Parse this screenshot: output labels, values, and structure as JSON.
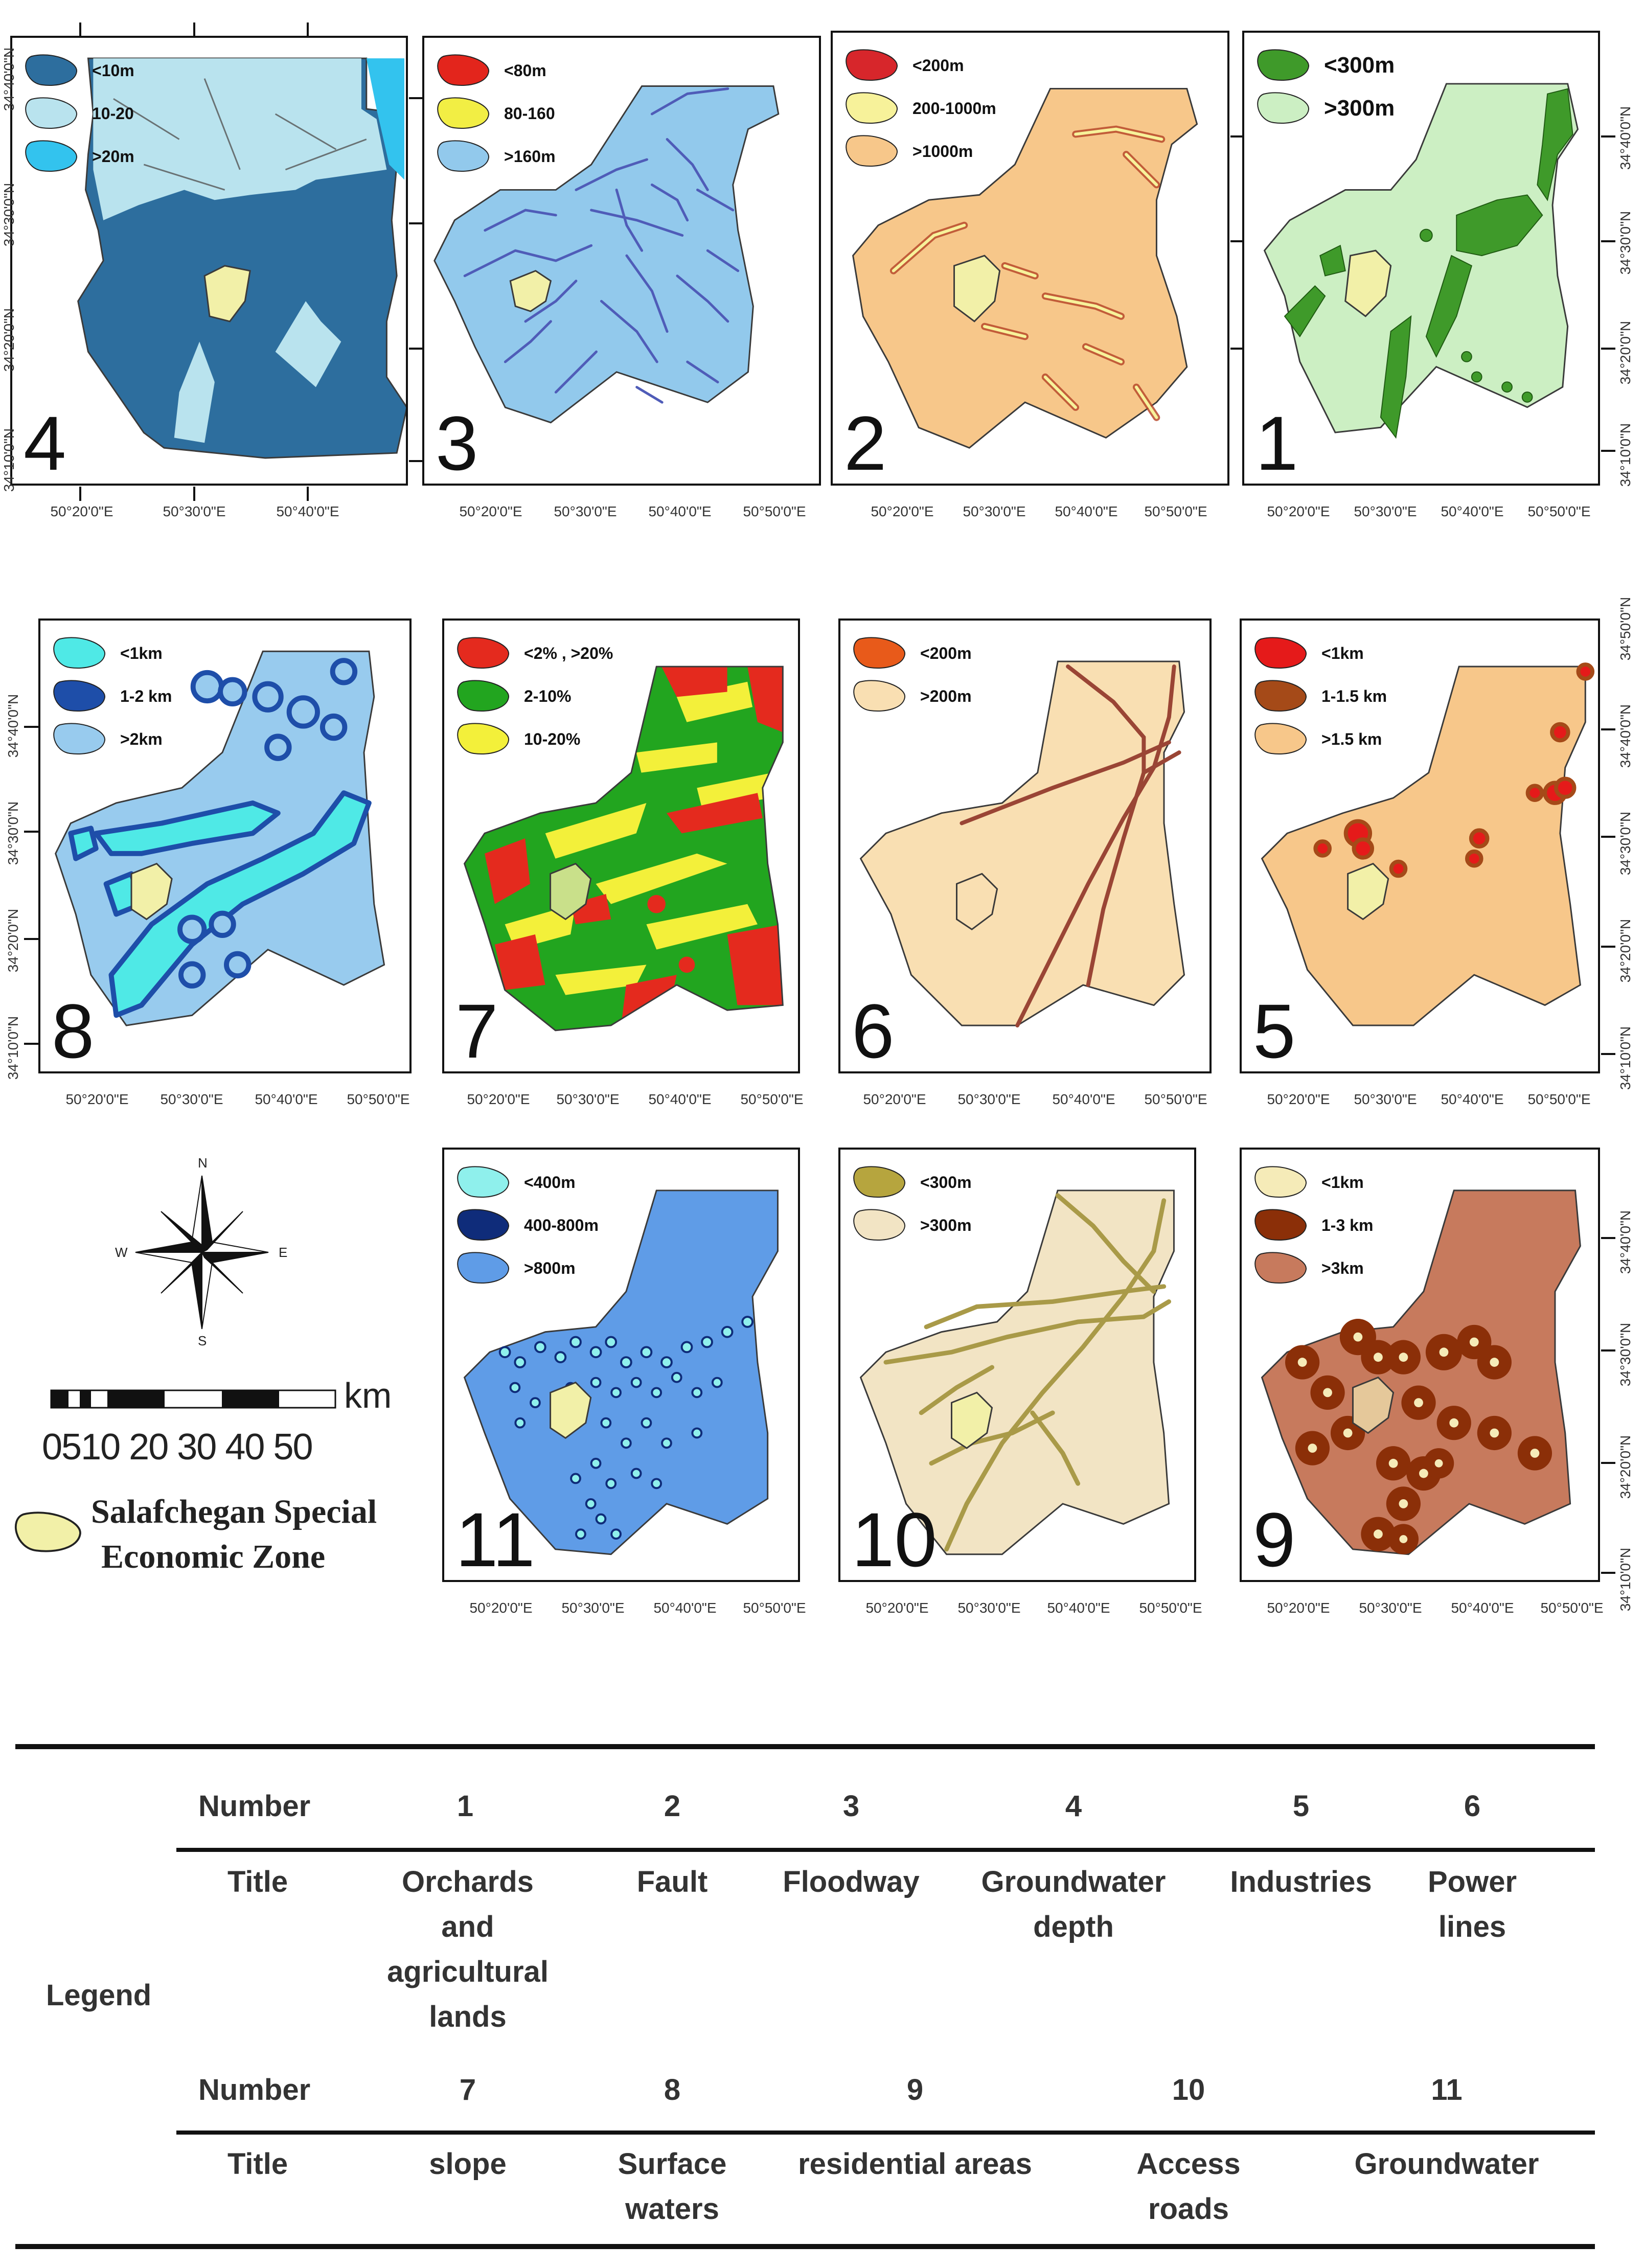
{
  "colors": {
    "boundary": "#3a3a3a",
    "zone": "#f2f0a8",
    "p4": {
      "a": "#2d6e9e",
      "b": "#b9e3ee",
      "c": "#33c3ee"
    },
    "p3": {
      "a": "#e3251c",
      "b": "#f2ee44",
      "c": "#92c9ec",
      "line": "#4f5cb8"
    },
    "p2": {
      "a": "#d7262b",
      "b": "#f7f29a",
      "c": "#f7c78a"
    },
    "p1": {
      "a": "#3f9a2a",
      "b": "#ccefc3"
    },
    "p8": {
      "a": "#4fe9e6",
      "b": "#1e4ea9",
      "c": "#98cbee"
    },
    "p7": {
      "a": "#e42a1e",
      "b": "#22a51f",
      "c": "#f3f03a"
    },
    "p6": {
      "a": "#e85a1a",
      "b": "#f9dfb2",
      "line": "#9a4535"
    },
    "p5": {
      "a": "#e51a1a",
      "b": "#a54a18",
      "c": "#f7c78a"
    },
    "p11": {
      "a": "#8ff0ec",
      "b": "#0f2c7a",
      "c": "#5f9ce7"
    },
    "p10": {
      "a": "#b6a53e",
      "b": "#f2e4c4",
      "line": "#a99a48"
    },
    "p9": {
      "a": "#f5ebb8",
      "b": "#8b2f08",
      "c": "#c77a5d"
    }
  },
  "panels": [
    {
      "id": "4",
      "number": "4",
      "legend": [
        "<10m",
        "10-20",
        ">20m"
      ],
      "x_ticks": [
        "50°20'0\"E",
        "50°30'0\"E",
        "50°40'0\"E"
      ],
      "y_ticks": [
        "34°40'0\"N",
        "34°30'0\"N",
        "34°20'0\"N",
        "34°10'0\"N"
      ]
    },
    {
      "id": "3",
      "number": "3",
      "legend": [
        "<80m",
        "80-160",
        ">160m"
      ],
      "x_ticks": [
        "50°20'0\"E",
        "50°30'0\"E",
        "50°40'0\"E",
        "50°50'0\"E"
      ]
    },
    {
      "id": "2",
      "number": "2",
      "legend": [
        "<200m",
        "200-1000m",
        ">1000m"
      ],
      "x_ticks": [
        "50°20'0\"E",
        "50°30'0\"E",
        "50°40'0\"E",
        "50°50'0\"E"
      ]
    },
    {
      "id": "1",
      "number": "1",
      "legend": [
        "<300m",
        ">300m"
      ],
      "x_ticks": [
        "50°20'0\"E",
        "50°30'0\"E",
        "50°40'0\"E",
        "50°50'0\"E"
      ],
      "y_ticks": [
        "34°40'0\"N",
        "34°30'0\"N",
        "34°20'0\"N",
        "34°10'0\"N"
      ]
    },
    {
      "id": "8",
      "number": "8",
      "legend": [
        "<1km",
        "1-2 km",
        ">2km"
      ],
      "x_ticks": [
        "50°20'0\"E",
        "50°30'0\"E",
        "50°40'0\"E",
        "50°50'0\"E"
      ],
      "y_ticks": [
        "34°40'0\"N",
        "34°30'0\"N",
        "34°20'0\"N",
        "34°10'0\"N"
      ]
    },
    {
      "id": "7",
      "number": "7",
      "legend": [
        "<2% , >20%",
        "2-10%",
        "10-20%"
      ],
      "x_ticks": [
        "50°20'0\"E",
        "50°30'0\"E",
        "50°40'0\"E",
        "50°50'0\"E"
      ]
    },
    {
      "id": "6",
      "number": "6",
      "legend": [
        "<200m",
        ">200m"
      ],
      "x_ticks": [
        "50°20'0\"E",
        "50°30'0\"E",
        "50°40'0\"E",
        "50°50'0\"E"
      ]
    },
    {
      "id": "5",
      "number": "5",
      "legend": [
        "<1km",
        "1-1.5 km",
        ">1.5 km"
      ],
      "x_ticks": [
        "50°20'0\"E",
        "50°30'0\"E",
        "50°40'0\"E",
        "50°50'0\"E"
      ],
      "y_ticks": [
        "34°50'0\"N",
        "34°40'0\"N",
        "34°30'0\"N",
        "34°20'0\"N",
        "34°10'0\"N"
      ]
    },
    {
      "id": "11",
      "number": "11",
      "legend": [
        "<400m",
        "400-800m",
        ">800m"
      ],
      "x_ticks": [
        "50°20'0\"E",
        "50°30'0\"E",
        "50°40'0\"E",
        "50°50'0\"E"
      ]
    },
    {
      "id": "10",
      "number": "10",
      "legend": [
        "<300m",
        ">300m"
      ],
      "x_ticks": [
        "50°20'0\"E",
        "50°30'0\"E",
        "50°40'0\"E",
        "50°50'0\"E"
      ]
    },
    {
      "id": "9",
      "number": "9",
      "legend": [
        "<1km",
        "1-3 km",
        ">3km"
      ],
      "x_ticks": [
        "50°20'0\"E",
        "50°30'0\"E",
        "50°40'0\"E",
        "50°50'0\"E"
      ],
      "y_ticks": [
        "34°40'0\"N",
        "34°30'0\"N",
        "34°20'0\"N",
        "34°10'0\"N"
      ]
    }
  ],
  "compass": {
    "n": "N",
    "s": "S",
    "e": "E",
    "w": "W"
  },
  "scale_bar": {
    "unit": "km",
    "ticks": "0510 20 30 40 50"
  },
  "zone_legend": {
    "line1": "Salafchegan Special",
    "line2": "Economic Zone"
  },
  "table": {
    "legend_label": "Legend",
    "row1_number_label": "Number",
    "row1_numbers": [
      "1",
      "2",
      "3",
      "4",
      "5",
      "6"
    ],
    "row1_title_label": "Title",
    "row1_titles": [
      "Orchards\nand\nagricultural\nlands",
      "Fault",
      "Floodway",
      "Groundwater\ndepth",
      "Industries",
      "Power\nlines"
    ],
    "row2_number_label": "Number",
    "row2_numbers": [
      "7",
      "8",
      "9",
      "10",
      "11"
    ],
    "row2_title_label": "Title",
    "row2_titles": [
      "slope",
      "Surface\nwaters",
      "residential areas",
      "Access\nroads",
      "Groundwater"
    ]
  }
}
